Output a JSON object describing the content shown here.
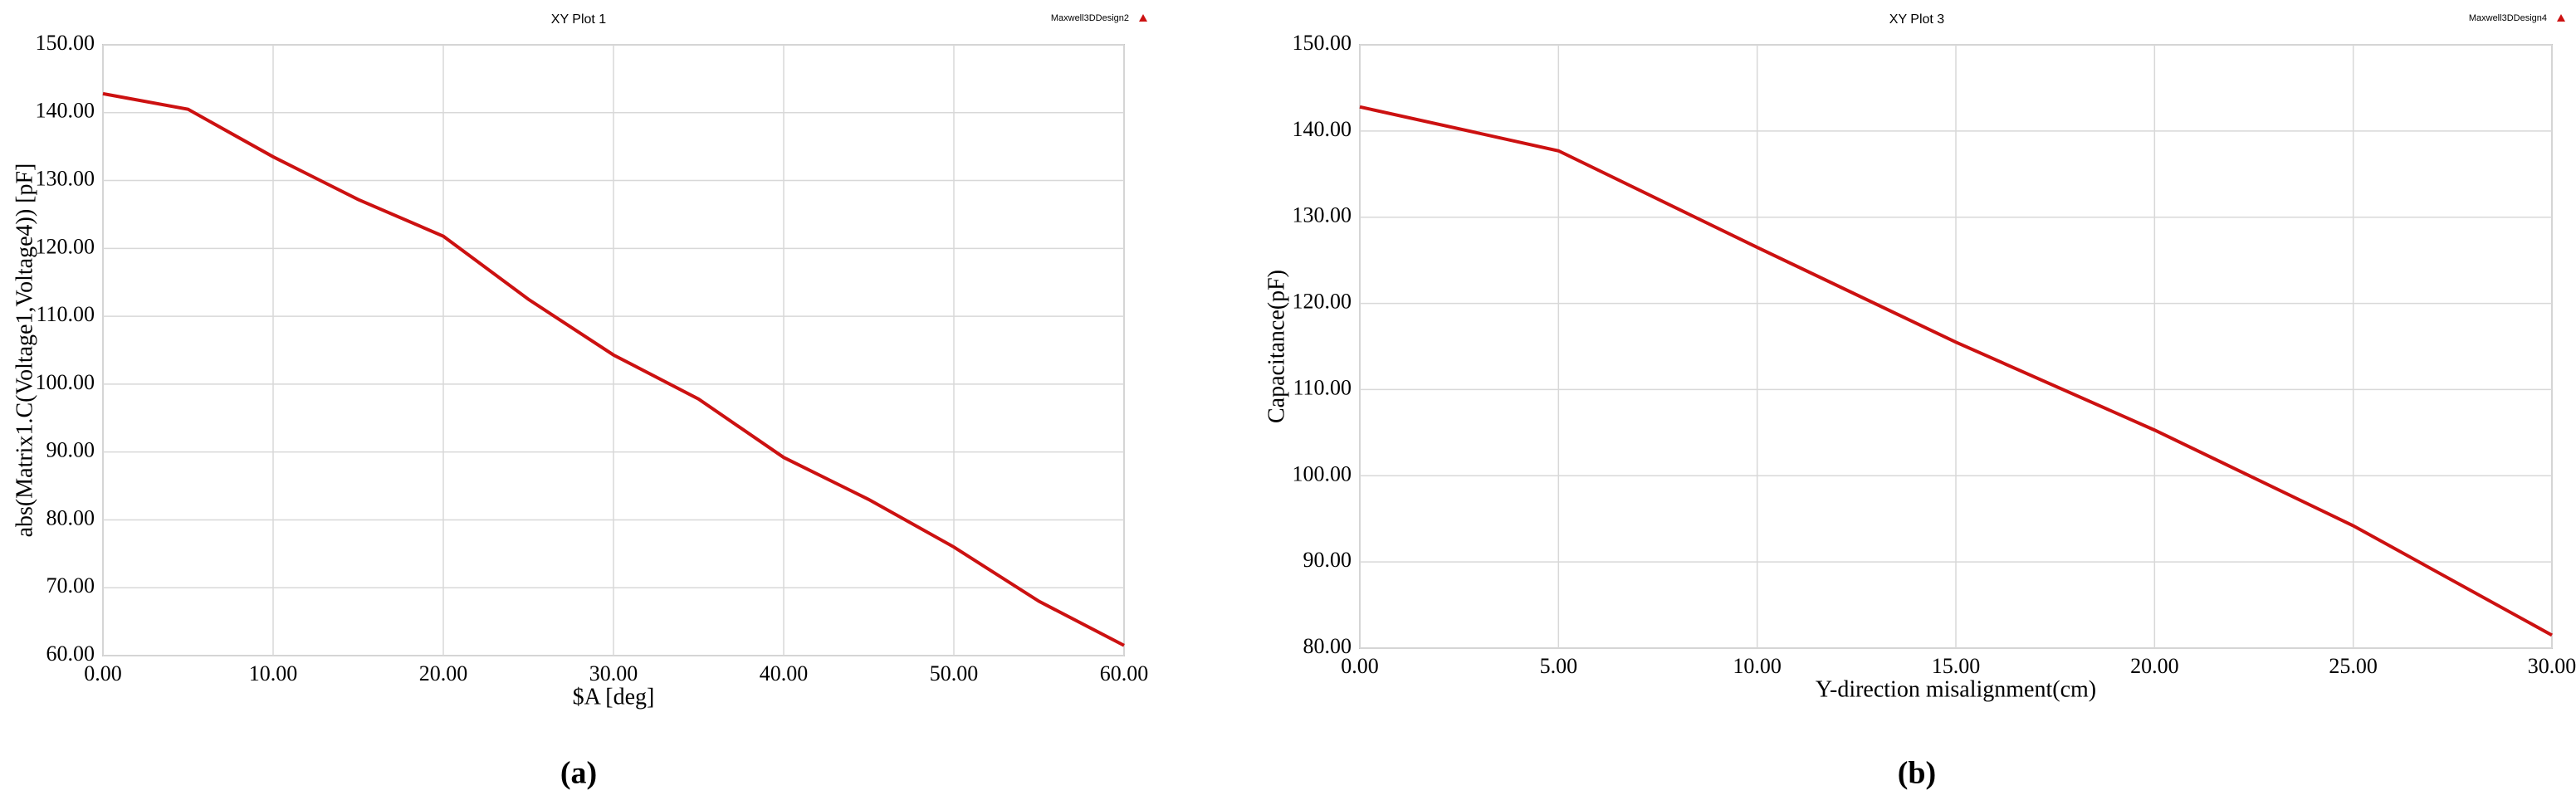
{
  "chart_data": [
    {
      "type": "line",
      "title": "XY Plot 1",
      "x_label": "$A [deg]",
      "y_label": "abs(Matrix1.C(Voltage1,Voltage4)) [pF]",
      "caption": "(a)",
      "x": [
        0,
        5,
        10,
        15,
        20,
        25,
        30,
        35,
        40,
        45,
        50,
        55,
        60
      ],
      "series": [
        {
          "name": "Maxwell3DDesign2",
          "color": "#cc1111",
          "values": [
            142.8,
            140.5,
            133.5,
            127.2,
            121.8,
            112.5,
            104.3,
            97.8,
            89.2,
            83,
            76,
            68,
            61.5
          ]
        }
      ],
      "xlim": [
        0,
        60
      ],
      "xticks": [
        {
          "value": 0,
          "label": "0.00"
        },
        {
          "value": 10,
          "label": "10.00"
        },
        {
          "value": 20,
          "label": "20.00"
        },
        {
          "value": 30,
          "label": "30.00"
        },
        {
          "value": 40,
          "label": "40.00"
        },
        {
          "value": 50,
          "label": "50.00"
        },
        {
          "value": 60,
          "label": "60.00"
        }
      ],
      "ylim": [
        60,
        150
      ],
      "yticks": [
        {
          "value": 60,
          "label": "60.00"
        },
        {
          "value": 70,
          "label": "70.00"
        },
        {
          "value": 80,
          "label": "80.00"
        },
        {
          "value": 90,
          "label": "90.00"
        },
        {
          "value": 100,
          "label": "100.00"
        },
        {
          "value": 110,
          "label": "110.00"
        },
        {
          "value": 120,
          "label": "120.00"
        },
        {
          "value": 130,
          "label": "130.00"
        },
        {
          "value": 140,
          "label": "140.00"
        },
        {
          "value": 150,
          "label": "150.00"
        }
      ],
      "grid": true
    },
    {
      "type": "line",
      "title": "XY Plot 3",
      "x_label": "Y-direction misalignment(cm)",
      "y_label": "Capacitance(pF)",
      "caption": "(b)",
      "x": [
        0,
        5,
        10,
        15,
        20,
        25,
        30
      ],
      "series": [
        {
          "name": "Maxwell3DDesign4",
          "color": "#cc1111",
          "values": [
            142.8,
            137.7,
            126.5,
            115.5,
            105.3,
            94.2,
            81.5
          ]
        }
      ],
      "xlim": [
        0,
        30
      ],
      "xticks": [
        {
          "value": 0,
          "label": "0.00"
        },
        {
          "value": 5,
          "label": "5.00"
        },
        {
          "value": 10,
          "label": "10.00"
        },
        {
          "value": 15,
          "label": "15.00"
        },
        {
          "value": 20,
          "label": "20.00"
        },
        {
          "value": 25,
          "label": "25.00"
        },
        {
          "value": 30,
          "label": "30.00"
        }
      ],
      "ylim": [
        80,
        150
      ],
      "yticks": [
        {
          "value": 80,
          "label": "80.00"
        },
        {
          "value": 90,
          "label": "90.00"
        },
        {
          "value": 100,
          "label": "100.00"
        },
        {
          "value": 110,
          "label": "110.00"
        },
        {
          "value": 120,
          "label": "120.00"
        },
        {
          "value": 130,
          "label": "130.00"
        },
        {
          "value": 140,
          "label": "140.00"
        },
        {
          "value": 150,
          "label": "150.00"
        }
      ],
      "grid": true
    }
  ]
}
